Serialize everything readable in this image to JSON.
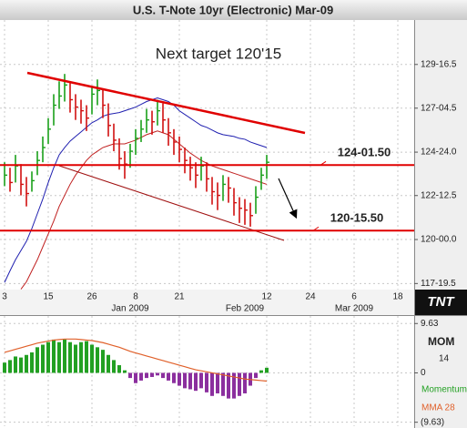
{
  "chart_data": [
    {
      "type": "hlc",
      "title": "U.S. T-Note 10yr (Electronic) Mar-09",
      "annotation": "Next target 120'15",
      "logo": "TNT",
      "categories": [
        "3",
        null,
        null,
        null,
        null,
        null,
        null,
        null,
        "15",
        null,
        null,
        null,
        null,
        null,
        null,
        null,
        "26",
        null,
        null,
        null,
        null,
        null,
        null,
        null,
        "8",
        null,
        null,
        null,
        null,
        null,
        null,
        null,
        "21",
        null,
        null,
        null,
        null,
        null,
        null,
        null,
        null,
        null,
        null,
        null,
        null,
        null,
        null,
        null,
        "12",
        null,
        null,
        null,
        null,
        null,
        null,
        null,
        "24",
        null,
        null,
        null,
        null,
        null,
        null,
        null,
        "6",
        null,
        null,
        null,
        null,
        null,
        null,
        null,
        "18"
      ],
      "month_categories": [
        null,
        null,
        null,
        null,
        null,
        null,
        null,
        null,
        null,
        null,
        null,
        null,
        null,
        null,
        null,
        null,
        null,
        null,
        null,
        null,
        null,
        null,
        null,
        "Jan 2009",
        null,
        null,
        null,
        null,
        null,
        null,
        null,
        null,
        null,
        null,
        null,
        null,
        null,
        null,
        null,
        null,
        null,
        null,
        null,
        null,
        "Feb 2009",
        null,
        null,
        null,
        null,
        null,
        null,
        null,
        null,
        null,
        null,
        null,
        null,
        null,
        null,
        null,
        null,
        null,
        null,
        null,
        "Mar 2009",
        null,
        null,
        null,
        null,
        null,
        null,
        null,
        null
      ],
      "high": [
        124.2,
        123.9,
        124.6,
        124.1,
        123.4,
        123.7,
        124.8,
        125.6,
        126.6,
        127.9,
        128.6,
        129.0,
        128.5,
        127.9,
        127.6,
        127.3,
        128.3,
        128.7,
        128.2,
        127.4,
        126.3,
        125.5,
        124.8,
        125.2,
        126.0,
        126.5,
        127.1,
        127.0,
        127.6,
        127.4,
        126.6,
        126.0,
        125.6,
        125.0,
        124.5,
        124.2,
        124.5,
        124.2,
        123.4,
        123.1,
        123.5,
        123.4,
        122.8,
        122.3,
        122.2,
        122.0,
        122.9,
        123.9,
        124.6,
        null,
        null,
        null,
        null,
        null,
        null,
        null,
        null,
        null,
        null,
        null,
        null,
        null,
        null,
        null,
        null,
        null,
        null,
        null,
        null,
        null,
        null,
        null,
        null
      ],
      "low": [
        122.9,
        122.6,
        123.1,
        122.4,
        121.8,
        122.6,
        123.5,
        124.2,
        125.2,
        126.2,
        127.1,
        127.5,
        126.9,
        126.5,
        126.3,
        125.9,
        126.8,
        127.3,
        126.6,
        125.6,
        124.8,
        123.8,
        123.3,
        123.9,
        124.6,
        125.3,
        125.8,
        125.7,
        126.2,
        125.8,
        125.1,
        124.6,
        124.2,
        123.6,
        123.2,
        122.8,
        123.2,
        122.6,
        121.9,
        121.6,
        122.1,
        122.0,
        121.3,
        120.9,
        120.8,
        120.7,
        121.4,
        122.7,
        123.3,
        null,
        null,
        null,
        null,
        null,
        null,
        null,
        null,
        null,
        null,
        null,
        null,
        null,
        null,
        null,
        null,
        null,
        null,
        null,
        null,
        null,
        null,
        null,
        null
      ],
      "close": [
        123.5,
        123.1,
        124.0,
        123.0,
        122.5,
        123.2,
        124.3,
        125.0,
        126.0,
        127.3,
        127.8,
        128.4,
        127.6,
        127.2,
        127.0,
        126.6,
        127.9,
        128.1,
        127.3,
        126.2,
        125.4,
        124.4,
        124.1,
        124.8,
        125.5,
        126.0,
        126.5,
        126.4,
        127.0,
        126.5,
        125.8,
        125.3,
        124.9,
        124.3,
        123.9,
        123.5,
        124.0,
        123.3,
        122.6,
        122.4,
        123.0,
        122.8,
        122.0,
        121.7,
        121.6,
        121.3,
        122.3,
        123.5,
        124.2,
        null,
        null,
        null,
        null,
        null,
        null,
        null,
        null,
        null,
        null,
        null,
        null,
        null,
        null,
        null,
        null,
        null,
        null,
        null,
        null,
        null,
        null,
        null,
        null
      ],
      "up_color": "#1aa01a",
      "down_color": "#d01010",
      "overlays": [
        {
          "color": "#2020b0",
          "values": [
            117.67,
            118.3,
            118.9,
            119.4,
            119.9,
            120.6,
            121.4,
            122.2,
            123.1,
            123.9,
            124.6,
            125.0,
            125.35,
            125.6,
            125.85,
            126.1,
            126.35,
            126.5,
            126.7,
            126.8,
            126.85,
            126.9,
            127.0,
            127.1,
            127.2,
            127.35,
            127.5,
            127.6,
            127.7,
            127.6,
            127.5,
            127.3,
            127.0,
            126.8,
            126.6,
            126.4,
            126.2,
            126.1,
            125.95,
            125.8,
            125.7,
            125.65,
            125.6,
            125.5,
            125.45,
            125.3,
            125.2,
            125.1,
            125.0,
            null,
            null,
            null,
            null,
            null,
            null,
            null,
            null,
            null,
            null,
            null,
            null,
            null,
            null,
            null,
            null,
            null,
            null,
            null,
            null,
            null,
            null,
            null,
            null
          ]
        },
        {
          "color": "#c02020",
          "values": [
            null,
            null,
            null,
            117.3,
            117.7,
            118.3,
            118.9,
            119.6,
            120.3,
            121.0,
            121.8,
            122.4,
            123.0,
            123.5,
            123.9,
            124.3,
            124.6,
            124.8,
            125.0,
            125.1,
            125.2,
            125.2,
            125.2,
            125.3,
            125.4,
            125.55,
            125.7,
            125.8,
            125.9,
            125.8,
            125.7,
            125.45,
            125.2,
            124.95,
            124.7,
            124.5,
            124.3,
            124.15,
            124.0,
            123.9,
            123.8,
            123.7,
            123.6,
            123.5,
            123.4,
            123.3,
            123.2,
            123.1,
            123.0,
            null,
            null,
            null,
            null,
            null,
            null,
            null,
            null,
            null,
            null,
            null,
            null,
            null,
            null,
            null,
            null,
            null,
            null,
            null,
            null,
            null,
            null,
            null,
            null
          ]
        }
      ],
      "hlines": [
        {
          "value": 124.046875,
          "label": "124-01.50",
          "color": "#e00000"
        },
        {
          "value": 120.484375,
          "label": "120-15.50",
          "color": "#e00000"
        }
      ],
      "ylim": [
        117.28,
        131.93
      ],
      "yticks": [
        {
          "value": 117.609375,
          "label": "117-19.5"
        },
        {
          "value": 120,
          "label": "120-00.0"
        },
        {
          "value": 122.390625,
          "label": "122-12.5"
        },
        {
          "value": 124.75,
          "label": "124-24.0"
        },
        {
          "value": 127.140625,
          "label": "127-04.5"
        },
        {
          "value": 129.515625,
          "label": "129-16.5"
        }
      ],
      "grid": true
    },
    {
      "type": "bar",
      "label": "MOM",
      "period": 14,
      "series": [
        {
          "name": "Momentum",
          "color": "#22a022",
          "negative_color": "#8b2f9e",
          "values": [
            2,
            2.5,
            3.2,
            3,
            3.5,
            4,
            5,
            5.5,
            6,
            6.5,
            6,
            6.5,
            6,
            5.5,
            6,
            6.2,
            5.5,
            5,
            4.5,
            3.5,
            2.5,
            1.5,
            0.5,
            -1,
            -2,
            -1.5,
            -1,
            -0.8,
            -0.5,
            -1,
            -1.5,
            -2,
            -2.5,
            -3,
            -3.2,
            -3.5,
            -3,
            -3.8,
            -4.5,
            -4,
            -4.5,
            -5,
            -5,
            -4.5,
            -4,
            -2.5,
            -1,
            0.5,
            1
          ]
        },
        {
          "name": "MMA 28",
          "type": "line",
          "color": "#e0602a",
          "values": [
            4.0,
            4.3,
            4.6,
            4.9,
            5.2,
            5.5,
            5.8,
            6.0,
            6.2,
            6.4,
            6.5,
            6.6,
            6.6,
            6.6,
            6.5,
            6.4,
            6.3,
            6.1,
            5.9,
            5.6,
            5.3,
            5.0,
            4.6,
            4.2,
            3.9,
            3.6,
            3.3,
            3.0,
            2.7,
            2.4,
            2.1,
            1.8,
            1.5,
            1.2,
            0.9,
            0.6,
            0.4,
            0.2,
            0.0,
            -0.2,
            -0.4,
            -0.6,
            -0.8,
            -1.0,
            -1.2,
            -1.3,
            -1.4,
            -1.5,
            -1.6
          ]
        }
      ],
      "ylim": [
        -10.4,
        11.1
      ],
      "yticks": [
        {
          "value": -9.63,
          "label": "(9.63)"
        },
        0,
        {
          "value": 9.63,
          "label": "9.63"
        }
      ],
      "grid": true
    }
  ]
}
